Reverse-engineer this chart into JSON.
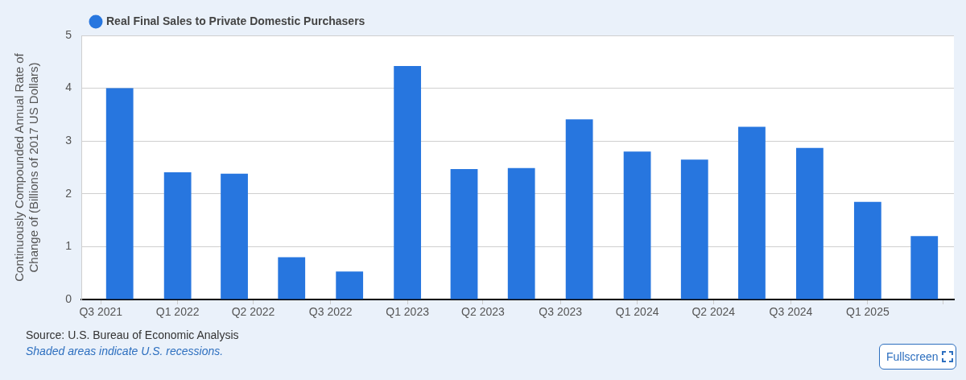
{
  "chart_data": {
    "type": "bar",
    "ylabel": "Continuously Compounded Annual Rate of Change of (Billions of 2017 US Dollars)",
    "x": [
      "2021-10-01",
      "2022-01-01",
      "2022-04-01",
      "2022-07-01",
      "2022-10-01",
      "2023-01-01",
      "2023-04-01",
      "2023-07-01",
      "2023-10-01",
      "2024-01-01",
      "2024-04-01",
      "2024-07-01",
      "2024-10-01",
      "2025-01-01",
      "2025-04-01"
    ],
    "series": [
      {
        "name": "Real Final Sales to Private Domestic Purchasers",
        "color": "#2776df",
        "values": [
          4.0,
          2.41,
          2.38,
          0.8,
          0.53,
          4.42,
          2.47,
          2.49,
          3.41,
          2.8,
          2.65,
          3.27,
          2.87,
          1.85,
          1.2
        ]
      }
    ],
    "xlim": [
      "2021-08-01",
      "2025-05-18"
    ],
    "xticks": [
      {
        "value": "2021-09-01",
        "label": "Q3 2021"
      },
      {
        "value": "2022-01-01",
        "label": "Q1 2022"
      },
      {
        "value": "2022-05-01",
        "label": "Q2 2022"
      },
      {
        "value": "2022-09-01",
        "label": "Q3 2022"
      },
      {
        "value": "2023-01-01",
        "label": "Q1 2023"
      },
      {
        "value": "2023-05-01",
        "label": "Q2 2023"
      },
      {
        "value": "2023-09-01",
        "label": "Q3 2023"
      },
      {
        "value": "2024-01-01",
        "label": "Q1 2024"
      },
      {
        "value": "2024-05-01",
        "label": "Q2 2024"
      },
      {
        "value": "2024-09-01",
        "label": "Q3 2024"
      },
      {
        "value": "2025-01-01",
        "label": "Q1 2025"
      },
      {
        "value": "2025-05-01",
        "label": null
      }
    ],
    "ylim": [
      0,
      5
    ],
    "yticks": [
      0,
      1,
      2,
      3,
      4,
      5
    ],
    "grid": "y",
    "legend": "top left",
    "annotations": [
      "Source: U.S. Bureau of Economic Analysis",
      "Shaded areas indicate U.S. recessions.",
      "Fullscreen"
    ]
  }
}
